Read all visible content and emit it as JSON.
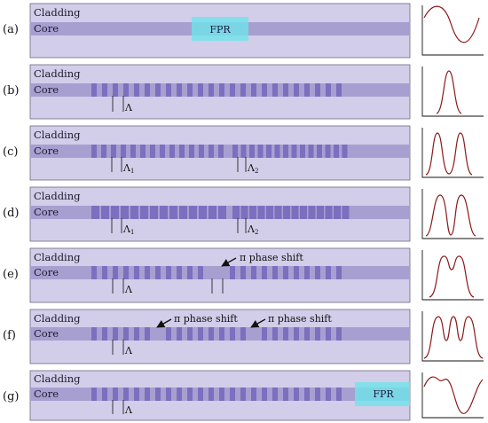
{
  "panels": [
    {
      "label": "(a)",
      "cladding": "Cladding",
      "core": "Core",
      "fpr": "FPR"
    },
    {
      "label": "(b)",
      "cladding": "Cladding",
      "core": "Core",
      "period": "Λ"
    },
    {
      "label": "(c)",
      "cladding": "Cladding",
      "core": "Core",
      "period1": "Λ",
      "sub1": "1",
      "period2": "Λ",
      "sub2": "2"
    },
    {
      "label": "(d)",
      "cladding": "Cladding",
      "core": "Core",
      "period1": "Λ",
      "sub1": "1",
      "period2": "Λ",
      "sub2": "2"
    },
    {
      "label": "(e)",
      "cladding": "Cladding",
      "core": "Core",
      "period": "Λ",
      "shift": "π phase shift"
    },
    {
      "label": "(f)",
      "cladding": "Cladding",
      "core": "Core",
      "period": "Λ",
      "shift1": "π phase shift",
      "shift2": "π phase shift"
    },
    {
      "label": "(g)",
      "cladding": "Cladding",
      "core": "Core",
      "period": "Λ",
      "fpr": "FPR"
    }
  ],
  "colors": {
    "cladding": "#d2cde9",
    "core": "#a79fd0",
    "grating": "#7c6fbf",
    "border": "#6d6a80",
    "spectrum": "#8b1a1a",
    "fpr": "#6fe3ea"
  },
  "icons": [
    "arrow-icon"
  ]
}
